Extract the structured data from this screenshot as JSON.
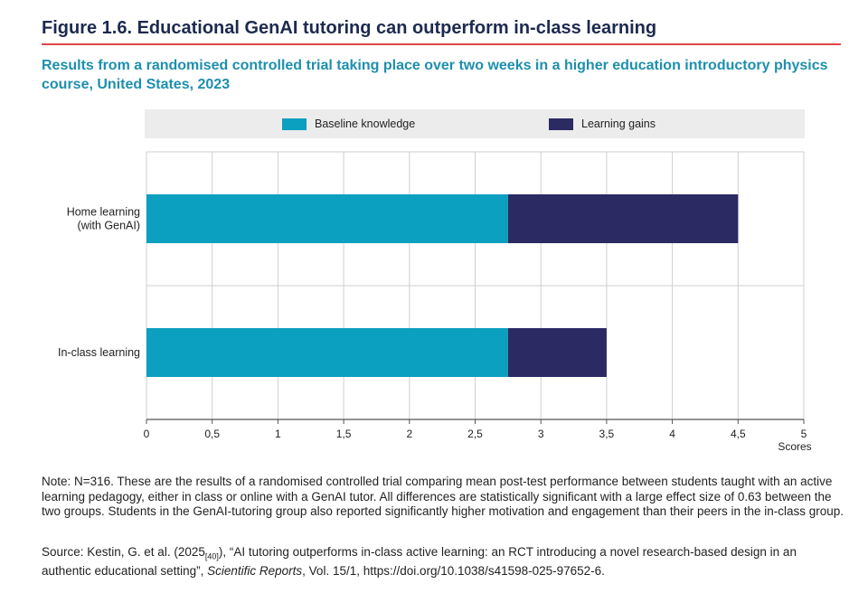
{
  "figure": {
    "title": "Figure 1.6. Educational GenAI tutoring can outperform in-class learning",
    "subtitle": "Results from a randomised controlled trial taking place over two weeks in a higher education introductory physics course, United States, 2023"
  },
  "colors": {
    "baseline": "#0b9fc0",
    "gains": "#2b2a63",
    "grid": "#cfcfcf",
    "title": "#1d2a4f",
    "subtitle": "#1d8fae",
    "rule": "#e0464a"
  },
  "chart_data": {
    "type": "bar",
    "orientation": "horizontal",
    "stacked": true,
    "categories": [
      "Home learning (with GenAI)",
      "In-class learning"
    ],
    "series": [
      {
        "name": "Baseline knowledge",
        "values": [
          2.75,
          2.75
        ]
      },
      {
        "name": "Learning gains",
        "values": [
          1.75,
          0.75
        ]
      }
    ],
    "xlabel": "Scores",
    "xlim": [
      0,
      5
    ],
    "xticks": [
      0,
      0.5,
      1,
      1.5,
      2,
      2.5,
      3,
      3.5,
      4,
      4.5,
      5
    ],
    "xtick_labels": [
      "0",
      "0,5",
      "1",
      "1,5",
      "2",
      "2,5",
      "3",
      "3,5",
      "4",
      "4,5",
      "5"
    ],
    "category_label_lines": [
      [
        "Home learning",
        "(with GenAI)"
      ],
      [
        "In-class learning"
      ]
    ],
    "grid": true,
    "legend_position": "top"
  },
  "note": "Note: N=316. These are the results of a randomised controlled trial comparing mean post-test performance between students taught with an active learning pedagogy, either in class or online with a GenAI tutor. All differences are statistically significant with a large effect size of 0.63 between the two groups. Students in the GenAI-tutoring group also reported significantly higher motivation and engagement than their peers in the in-class group.",
  "source": {
    "prefix": "Source: Kestin, G. et al. (2025",
    "ref": "[40]",
    "middle": "), “AI tutoring outperforms in-class active learning: an RCT introducing a novel research-based design in an authentic educational setting”, ",
    "journal": "Scientific Reports",
    "suffix": ", Vol. 15/1, https://doi.org/10.1038/s41598-025-97652-6."
  }
}
